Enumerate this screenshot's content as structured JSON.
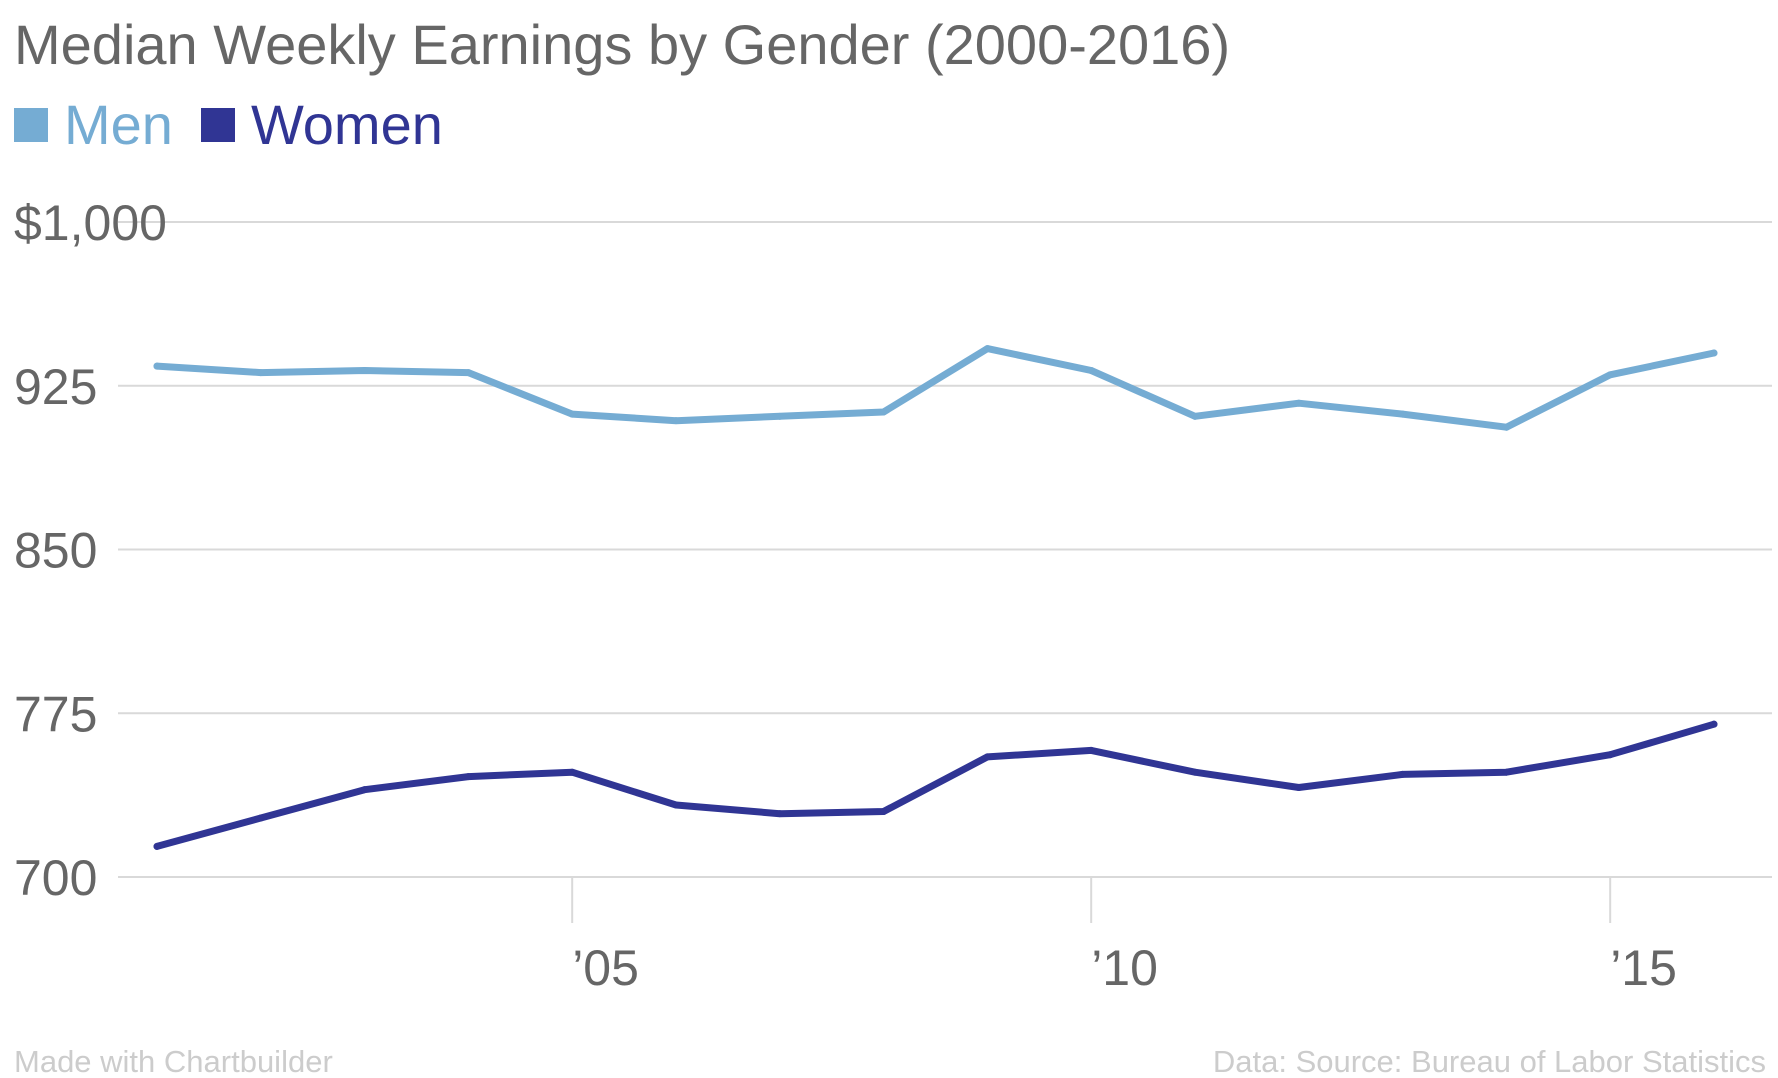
{
  "chart_data": {
    "type": "line",
    "title": "Median Weekly Earnings by Gender (2000-2016)",
    "x": [
      2001,
      2002,
      2003,
      2004,
      2005,
      2006,
      2007,
      2008,
      2009,
      2010,
      2011,
      2012,
      2013,
      2014,
      2015,
      2016
    ],
    "series": [
      {
        "name": "Men",
        "color": "#75acd3",
        "values": [
          934,
          931,
          932,
          931,
          912,
          909,
          911,
          913,
          942,
          932,
          911,
          917,
          912,
          906,
          930,
          940
        ]
      },
      {
        "name": "Women",
        "color": "#303594",
        "values": [
          714,
          727,
          740,
          746,
          748,
          733,
          729,
          730,
          755,
          758,
          748,
          741,
          747,
          748,
          756,
          770
        ]
      }
    ],
    "ylim": [
      700,
      1000
    ],
    "y_ticks": [
      {
        "value": 1000,
        "label": "$1,000"
      },
      {
        "value": 925,
        "label": "925"
      },
      {
        "value": 850,
        "label": "850"
      },
      {
        "value": 775,
        "label": "775"
      },
      {
        "value": 700,
        "label": "700"
      }
    ],
    "x_ticks": [
      {
        "value": 2005,
        "label": "’05"
      },
      {
        "value": 2010,
        "label": "’10"
      },
      {
        "value": 2015,
        "label": "’15"
      }
    ],
    "grid": true,
    "legend_position": "top-left",
    "xlabel": "",
    "ylabel": ""
  },
  "footer": {
    "credit": "Made with Chartbuilder",
    "source": "Data: Source: Bureau of Labor Statistics"
  }
}
